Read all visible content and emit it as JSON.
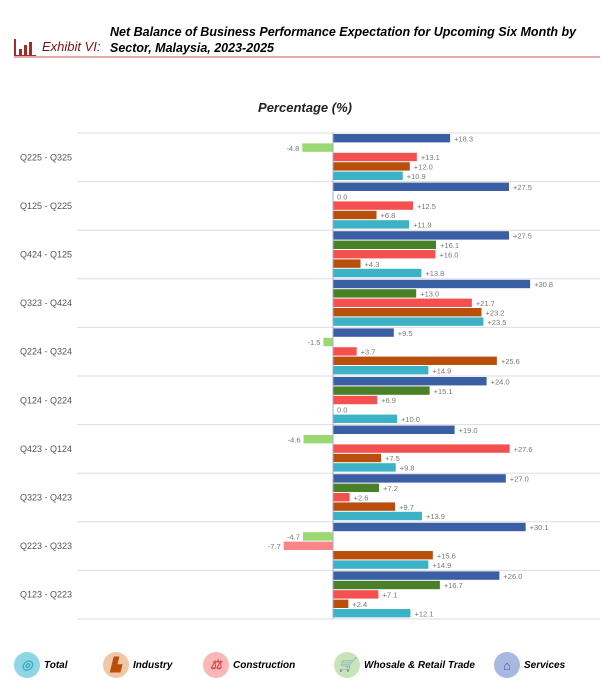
{
  "header": {
    "exhibit_label": "Exhibit VI:",
    "title": "Net Balance of Business Performance Expectation for Upcoming Six Month by Sector, Malaysia, 2023-2025"
  },
  "chart_data": {
    "type": "bar",
    "orientation": "horizontal",
    "title": "Percentage (%)",
    "categories": [
      "Q225 - Q325",
      "Q125 - Q225",
      "Q424 - Q125",
      "Q323 - Q424",
      "Q224 - Q324",
      "Q124 - Q224",
      "Q423 - Q124",
      "Q323 - Q423",
      "Q223 - Q323",
      "Q123 - Q223"
    ],
    "series": [
      {
        "name": "Services",
        "color": "#3a5fa5",
        "negative_color": "#8aa0d0",
        "values": [
          18.3,
          27.5,
          27.5,
          30.8,
          9.5,
          24.0,
          19.0,
          27.0,
          30.1,
          26.0
        ]
      },
      {
        "name": "Whosale & Retail Trade",
        "color": "#4a8028",
        "negative_color": "#9ad870",
        "values": [
          -4.8,
          0.0,
          16.1,
          13.0,
          -1.5,
          15.1,
          -4.6,
          7.2,
          -4.7,
          16.7
        ]
      },
      {
        "name": "Construction",
        "color": "#f55050",
        "negative_color": "#f88686",
        "values": [
          13.1,
          12.5,
          16.0,
          21.7,
          3.7,
          6.9,
          27.6,
          2.6,
          -7.7,
          7.1
        ]
      },
      {
        "name": "Industry",
        "color": "#b8500c",
        "negative_color": "#e09060",
        "values": [
          12.0,
          6.8,
          4.3,
          23.2,
          25.6,
          0.0,
          7.5,
          9.7,
          15.6,
          2.4
        ]
      },
      {
        "name": "Total",
        "color": "#3cb2c6",
        "negative_color": "#90d8e4",
        "values": [
          10.9,
          11.9,
          13.8,
          23.5,
          14.9,
          10.0,
          9.8,
          13.9,
          14.9,
          12.1
        ]
      }
    ],
    "grid": "horizontal separators between categories",
    "legend_placement": "bottom"
  },
  "legend": [
    {
      "label": "Total",
      "icon": "target-icon",
      "bg": "#8fd6e4",
      "fg": "#3ca8c0"
    },
    {
      "label": "Industry",
      "icon": "factory-icon",
      "bg": "#f0c8a8",
      "fg": "#b8500c"
    },
    {
      "label": "Construction",
      "icon": "crane-icon",
      "bg": "#f8b8b8",
      "fg": "#e04848"
    },
    {
      "label": "Whosale & Retail Trade",
      "icon": "cart-icon",
      "bg": "#c8e4b8",
      "fg": "#3a7a20"
    },
    {
      "label": "Services",
      "icon": "building-icon",
      "bg": "#a8b8e0",
      "fg": "#3a5fa5"
    }
  ]
}
